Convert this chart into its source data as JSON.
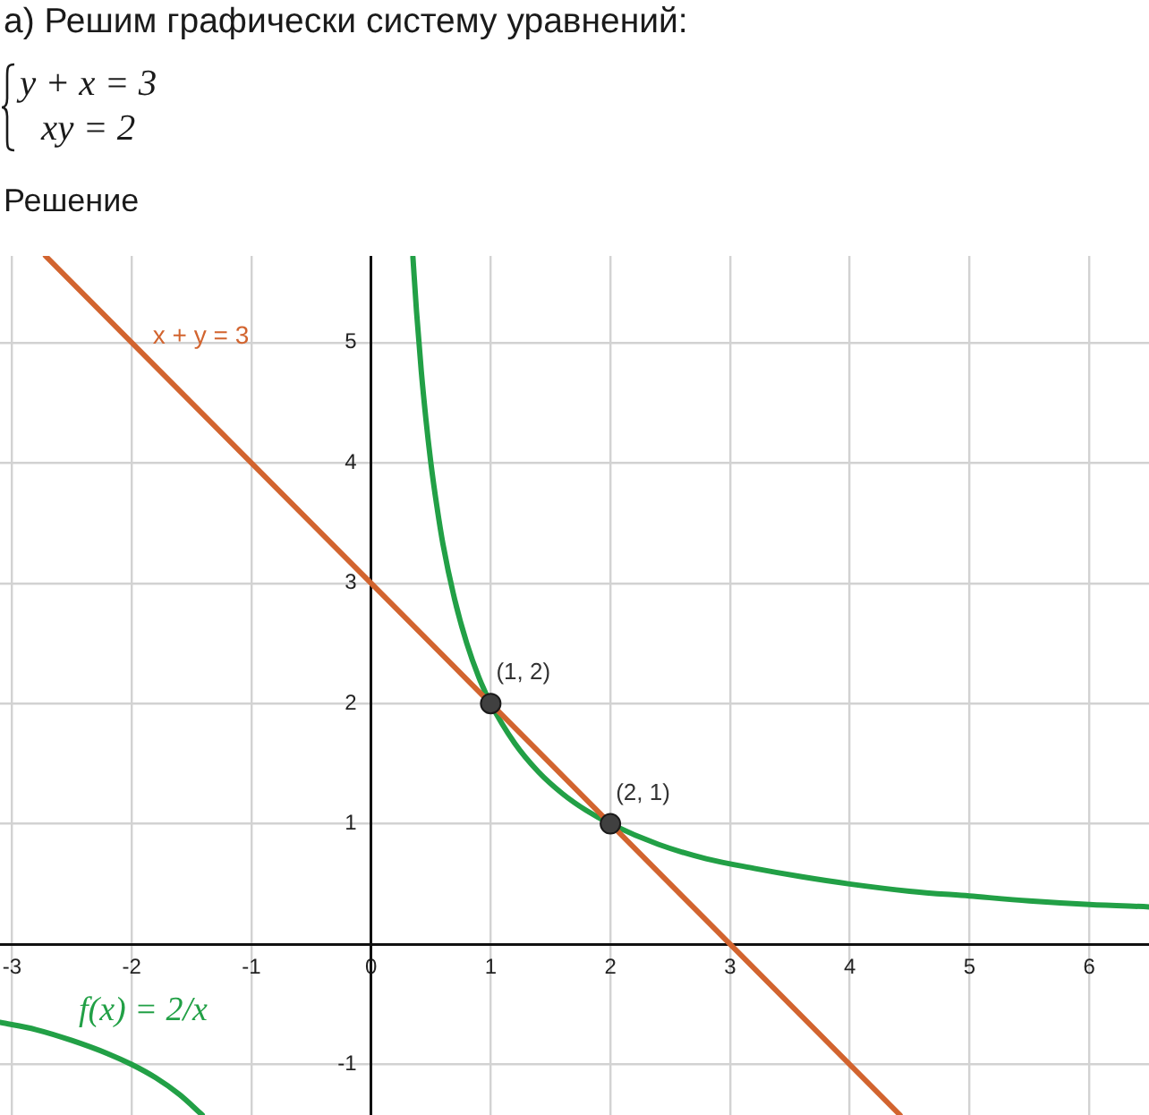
{
  "chart_data": {
    "type": "line",
    "title": "а) Решим графически систему уравнений:",
    "subtitle": "Решение",
    "annotations": [
      "y + x = 3",
      "xy = 2"
    ],
    "xlim": [
      -3.1,
      6.5
    ],
    "xticks": [
      -3,
      -2,
      -1,
      0,
      1,
      2,
      3,
      4,
      5,
      6
    ],
    "ylim": [
      -1.42,
      5.72
    ],
    "yticks": [
      -1,
      {
        "value": 0,
        "label": null
      },
      1,
      2,
      3,
      4,
      5
    ],
    "grid": true,
    "marker": "none",
    "series": [
      {
        "name": "x + y = 3",
        "color": "#d2642f",
        "x": [
          -2.72,
          4.42
        ],
        "values": [
          5.72,
          -1.42
        ]
      },
      {
        "name": "f(x) = 2/x",
        "color": "#22a046",
        "x": [
          -3.1,
          -2.8,
          -2.5,
          -2.2,
          -2,
          -1.8,
          -1.6,
          -1.41,
          0,
          0.35,
          0.38,
          0.42,
          0.46,
          0.5,
          0.55,
          0.6,
          0.7,
          0.8,
          0.9,
          1,
          1.2,
          1.4,
          1.6,
          1.8,
          2,
          2.4,
          2.8,
          3.2,
          3.6,
          4,
          4.5,
          5,
          5.5,
          6,
          6.5
        ],
        "values": [
          -0.65,
          -0.71,
          -0.8,
          -0.91,
          -1,
          -1.11,
          -1.25,
          -1.42,
          null,
          5.71,
          5.26,
          4.76,
          4.35,
          4,
          3.64,
          3.33,
          2.86,
          2.5,
          2.22,
          2,
          1.67,
          1.43,
          1.25,
          1.11,
          1,
          0.83,
          0.71,
          0.63,
          0.56,
          0.5,
          0.44,
          0.4,
          0.36,
          0.33,
          0.31
        ]
      },
      {
        "type": "scatter",
        "marker": "circle",
        "color": "#404040",
        "x": [
          1,
          2
        ],
        "values": [
          2,
          1
        ],
        "value_labels": [
          "(1, 2)",
          "(2, 1)"
        ]
      }
    ]
  }
}
